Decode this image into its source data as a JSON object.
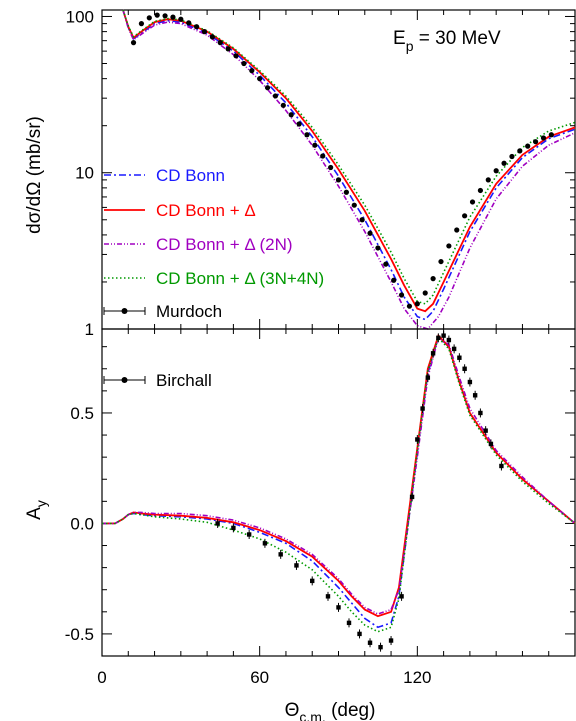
{
  "annotation": {
    "energy": "E",
    "energy_sub": "p",
    "energy_rest": " = 30 MeV"
  },
  "axes": {
    "x_label": "Θ",
    "x_label_sub": "c.m.",
    "x_label_rest": " (deg)",
    "top_y_label": "dσ/dΩ (mb/sr)",
    "bottom_y_label": "A",
    "bottom_y_label_sub": "y"
  },
  "legend": {
    "cd_bonn": "CD Bonn",
    "cd_bonn_delta": "CD Bonn + Δ",
    "cd_bonn_delta_2n": "CD Bonn + Δ (2N)",
    "cd_bonn_delta_3n4n": "CD Bonn + Δ (3N+4N)",
    "murdoch": "Murdoch",
    "birchall": "Birchall"
  },
  "colors": {
    "cd_bonn": "#1a1aff",
    "cd_bonn_delta": "#ff0000",
    "cd_bonn_delta_2n": "#a000c0",
    "cd_bonn_delta_3n4n": "#009900",
    "data": "#000000"
  },
  "chart_data": [
    {
      "type": "line",
      "panel": "top",
      "y_scale": "log",
      "xlim": [
        0,
        180
      ],
      "ylim": [
        1,
        110
      ],
      "x_ticks": [
        0,
        60,
        120
      ],
      "y_ticks": [
        1,
        10,
        100
      ],
      "y_tick_labels": [
        "1",
        "10",
        "100"
      ],
      "series": [
        {
          "key": "cd_bonn",
          "x": [
            8,
            10,
            12,
            15,
            20,
            25,
            30,
            40,
            50,
            60,
            70,
            80,
            90,
            100,
            110,
            115,
            120,
            123,
            126,
            130,
            140,
            150,
            160,
            170,
            180
          ],
          "y": [
            120,
            85,
            72,
            78,
            90,
            94,
            92,
            78,
            60,
            42,
            28,
            17,
            9.5,
            5.0,
            2.4,
            1.6,
            1.2,
            1.15,
            1.3,
            1.8,
            4.2,
            8.0,
            12.5,
            16.5,
            19.0
          ]
        },
        {
          "key": "cd_bonn_delta",
          "x": [
            8,
            10,
            12,
            15,
            20,
            25,
            30,
            40,
            50,
            60,
            70,
            80,
            90,
            100,
            110,
            115,
            120,
            123,
            126,
            130,
            140,
            150,
            160,
            170,
            180
          ],
          "y": [
            120,
            86,
            73,
            80,
            92,
            96,
            94,
            80,
            62,
            44,
            30,
            18.5,
            10.5,
            5.7,
            2.8,
            1.9,
            1.35,
            1.3,
            1.45,
            2.0,
            4.5,
            8.5,
            13.0,
            17.0,
            19.5
          ]
        },
        {
          "key": "cd_bonn_delta_2n",
          "x": [
            8,
            10,
            12,
            15,
            20,
            25,
            30,
            40,
            50,
            60,
            70,
            80,
            90,
            100,
            110,
            115,
            120,
            124,
            128,
            132,
            140,
            150,
            160,
            170,
            180
          ],
          "y": [
            118,
            84,
            71,
            77,
            88,
            92,
            90,
            76,
            57,
            39,
            25,
            15,
            8.2,
            4.2,
            2.0,
            1.35,
            1.05,
            1.0,
            1.2,
            1.6,
            3.3,
            6.8,
            11.0,
            15.0,
            18.0
          ]
        },
        {
          "key": "cd_bonn_delta_3n4n",
          "x": [
            8,
            10,
            12,
            15,
            20,
            25,
            30,
            40,
            50,
            60,
            70,
            80,
            90,
            100,
            110,
            115,
            120,
            123,
            126,
            130,
            140,
            150,
            160,
            170,
            180
          ],
          "y": [
            120,
            87,
            74,
            81,
            93,
            97,
            95,
            81,
            63,
            45,
            31,
            19.5,
            11.2,
            6.2,
            3.1,
            2.1,
            1.5,
            1.45,
            1.65,
            2.3,
            5.2,
            9.5,
            14.5,
            18.5,
            21.0
          ]
        },
        {
          "key": "murdoch",
          "marker": "dot",
          "x": [
            12,
            15,
            18,
            21,
            24,
            27,
            30,
            33,
            36,
            39,
            42,
            45,
            48,
            51,
            54,
            57,
            60,
            63,
            66,
            69,
            72,
            75,
            78,
            81,
            84,
            87,
            90,
            93,
            96,
            99,
            102,
            105,
            108,
            111,
            114,
            117,
            120,
            123,
            126,
            129,
            132,
            135,
            138,
            141,
            144,
            147,
            150,
            153,
            156,
            159,
            162,
            165,
            168,
            171
          ],
          "y": [
            68,
            90,
            98,
            102,
            101,
            99,
            96,
            91,
            86,
            80,
            74,
            68,
            62,
            56,
            50,
            45,
            40,
            35,
            31,
            27,
            23.5,
            20.5,
            17.5,
            15,
            12.8,
            10.8,
            9.0,
            7.5,
            6.2,
            5.0,
            4.1,
            3.3,
            2.6,
            2.05,
            1.65,
            1.4,
            1.45,
            1.7,
            2.1,
            2.7,
            3.4,
            4.3,
            5.3,
            6.5,
            7.7,
            9.0,
            10.3,
            11.5,
            12.7,
            13.8,
            14.8,
            15.8,
            16.7,
            17.5
          ]
        }
      ]
    },
    {
      "type": "line",
      "panel": "bottom",
      "xlim": [
        0,
        180
      ],
      "ylim": [
        -0.6,
        0.88
      ],
      "x_ticks": [
        0,
        60,
        120
      ],
      "x_tick_labels": [
        "0",
        "60",
        "120"
      ],
      "y_ticks": [
        -0.5,
        0,
        0.5
      ],
      "y_tick_labels": [
        "-0.5",
        "0.0",
        "0.5"
      ],
      "series": [
        {
          "key": "cd_bonn",
          "x": [
            0,
            5,
            8,
            10,
            12,
            15,
            20,
            30,
            40,
            50,
            60,
            70,
            80,
            90,
            95,
            100,
            105,
            110,
            113,
            116,
            120,
            124,
            128,
            132,
            136,
            140,
            150,
            160,
            170,
            180
          ],
          "y": [
            0,
            0,
            0.02,
            0.04,
            0.045,
            0.04,
            0.035,
            0.03,
            0.02,
            0.0,
            -0.04,
            -0.09,
            -0.17,
            -0.29,
            -0.36,
            -0.43,
            -0.47,
            -0.45,
            -0.33,
            -0.05,
            0.32,
            0.68,
            0.84,
            0.8,
            0.64,
            0.5,
            0.32,
            0.2,
            0.1,
            0.0
          ]
        },
        {
          "key": "cd_bonn_delta",
          "x": [
            0,
            5,
            8,
            10,
            12,
            15,
            20,
            30,
            40,
            50,
            60,
            70,
            80,
            90,
            95,
            100,
            105,
            110,
            113,
            116,
            120,
            124,
            128,
            132,
            136,
            140,
            150,
            160,
            170,
            180
          ],
          "y": [
            0,
            0,
            0.02,
            0.04,
            0.05,
            0.045,
            0.04,
            0.035,
            0.025,
            0.005,
            -0.03,
            -0.08,
            -0.15,
            -0.26,
            -0.33,
            -0.39,
            -0.42,
            -0.4,
            -0.29,
            -0.02,
            0.34,
            0.7,
            0.85,
            0.8,
            0.64,
            0.5,
            0.32,
            0.2,
            0.1,
            0.0
          ]
        },
        {
          "key": "cd_bonn_delta_2n",
          "x": [
            0,
            5,
            8,
            10,
            12,
            15,
            20,
            30,
            40,
            50,
            60,
            70,
            80,
            90,
            95,
            100,
            105,
            110,
            113,
            116,
            120,
            124,
            128,
            132,
            136,
            140,
            150,
            160,
            170,
            180
          ],
          "y": [
            0,
            0,
            0.02,
            0.04,
            0.05,
            0.05,
            0.045,
            0.045,
            0.035,
            0.015,
            -0.02,
            -0.07,
            -0.14,
            -0.25,
            -0.32,
            -0.38,
            -0.41,
            -0.39,
            -0.3,
            -0.05,
            0.3,
            0.66,
            0.84,
            0.81,
            0.66,
            0.52,
            0.33,
            0.21,
            0.1,
            0.0
          ]
        },
        {
          "key": "cd_bonn_delta_3n4n",
          "x": [
            0,
            5,
            8,
            10,
            12,
            15,
            20,
            30,
            40,
            50,
            60,
            70,
            80,
            90,
            95,
            100,
            105,
            110,
            113,
            116,
            120,
            124,
            128,
            132,
            136,
            140,
            150,
            160,
            170,
            180
          ],
          "y": [
            0,
            0,
            0.02,
            0.04,
            0.045,
            0.04,
            0.03,
            0.02,
            0.005,
            -0.03,
            -0.07,
            -0.13,
            -0.21,
            -0.33,
            -0.4,
            -0.46,
            -0.49,
            -0.47,
            -0.34,
            -0.05,
            0.33,
            0.69,
            0.84,
            0.79,
            0.63,
            0.49,
            0.31,
            0.19,
            0.09,
            0.0
          ]
        },
        {
          "key": "birchall",
          "marker": "square",
          "x": [
            44,
            50,
            56,
            62,
            68,
            74,
            80,
            86,
            90,
            94,
            98,
            102,
            106,
            110,
            114,
            118,
            120,
            122,
            124,
            126,
            128,
            130,
            132,
            134,
            136,
            138,
            140,
            142,
            144,
            146,
            148,
            152
          ],
          "y": [
            0.0,
            -0.02,
            -0.05,
            -0.09,
            -0.14,
            -0.19,
            -0.26,
            -0.33,
            -0.38,
            -0.45,
            -0.5,
            -0.54,
            -0.56,
            -0.53,
            -0.33,
            0.12,
            0.38,
            0.52,
            0.66,
            0.77,
            0.84,
            0.85,
            0.83,
            0.79,
            0.75,
            0.7,
            0.64,
            0.58,
            0.5,
            0.42,
            0.36,
            0.26
          ]
        }
      ]
    }
  ]
}
